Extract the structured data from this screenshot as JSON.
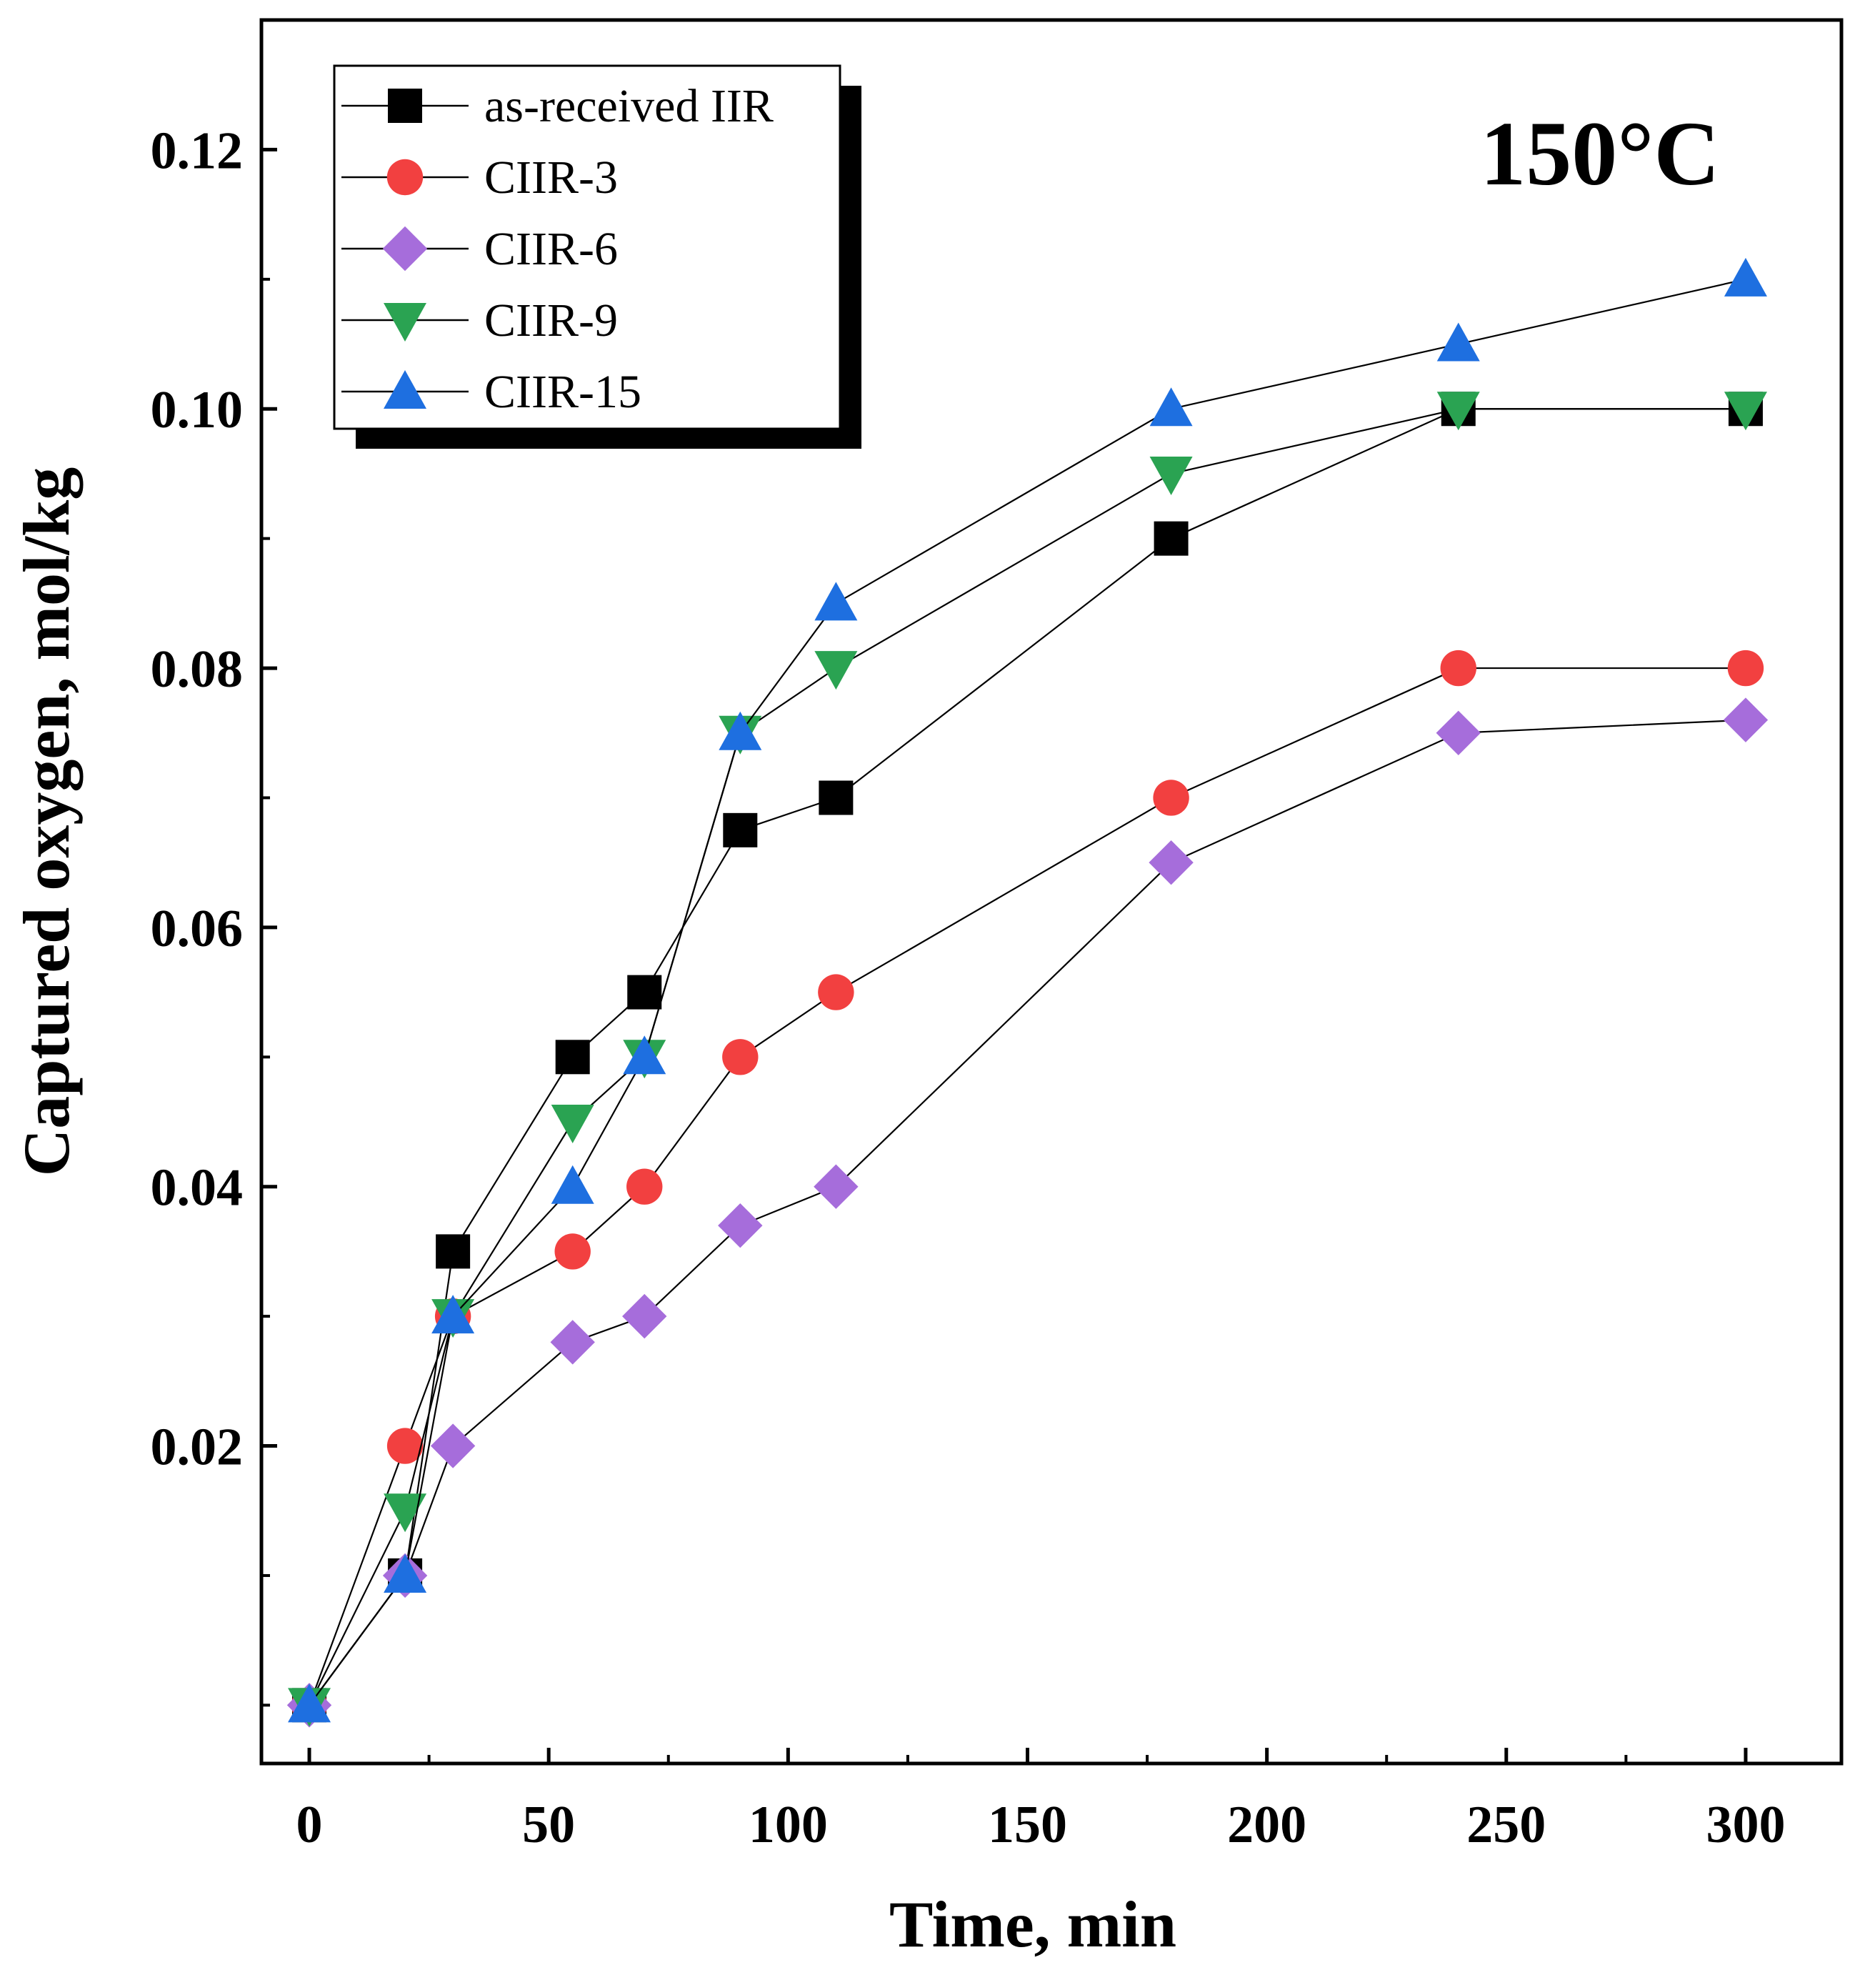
{
  "chart_data": {
    "type": "line",
    "title": "",
    "annotation": "150°C",
    "xlabel": "Time, min",
    "ylabel": "Captured oxygen, mol/kg",
    "xlim": [
      -10,
      320
    ],
    "ylim": [
      -0.0045,
      0.13
    ],
    "xticks": [
      0,
      50,
      100,
      150,
      200,
      250,
      300
    ],
    "xtick_labels": [
      "0",
      "50",
      "100",
      "150",
      "200",
      "250",
      "300"
    ],
    "x_minor_ticks": [
      25,
      75,
      125,
      175,
      225,
      275
    ],
    "yticks": [
      0.02,
      0.04,
      0.06,
      0.08,
      0.1,
      0.12
    ],
    "ytick_labels": [
      "0.02",
      "0.04",
      "0.06",
      "0.08",
      "0.10",
      "0.12"
    ],
    "y_minor_ticks": [
      0.0,
      0.01,
      0.03,
      0.05,
      0.07,
      0.09,
      0.11
    ],
    "grid": false,
    "legend_position": "top-left",
    "series": [
      {
        "name": "as-received IIR",
        "marker": "square",
        "color": "#000000",
        "x": [
          0,
          20,
          30,
          55,
          70,
          90,
          110,
          180,
          240,
          300
        ],
        "y": [
          0.0,
          0.01,
          0.035,
          0.05,
          0.055,
          0.0675,
          0.07,
          0.09,
          0.1,
          0.1
        ]
      },
      {
        "name": "CIIR-3",
        "marker": "circle",
        "color": "#f24040",
        "x": [
          0,
          20,
          30,
          55,
          70,
          90,
          110,
          180,
          240,
          300
        ],
        "y": [
          0.0,
          0.02,
          0.03,
          0.035,
          0.04,
          0.05,
          0.055,
          0.07,
          0.08,
          0.08
        ]
      },
      {
        "name": "CIIR-6",
        "marker": "diamond",
        "color": "#a66ddb",
        "x": [
          0,
          20,
          30,
          55,
          70,
          90,
          110,
          180,
          240,
          300
        ],
        "y": [
          0.0,
          0.01,
          0.02,
          0.028,
          0.03,
          0.037,
          0.04,
          0.065,
          0.075,
          0.076
        ]
      },
      {
        "name": "CIIR-9",
        "marker": "triangle-down",
        "color": "#2aa352",
        "x": [
          0,
          20,
          30,
          55,
          70,
          90,
          110,
          180,
          240,
          300
        ],
        "y": [
          0.0,
          0.015,
          0.03,
          0.045,
          0.05,
          0.075,
          0.08,
          0.095,
          0.1,
          0.1
        ]
      },
      {
        "name": "CIIR-15",
        "marker": "triangle-up",
        "color": "#1e6fe0",
        "x": [
          0,
          20,
          30,
          55,
          70,
          90,
          110,
          180,
          240,
          300
        ],
        "y": [
          0.0,
          0.01,
          0.03,
          0.04,
          0.05,
          0.075,
          0.085,
          0.1,
          0.105,
          0.11
        ]
      }
    ]
  }
}
